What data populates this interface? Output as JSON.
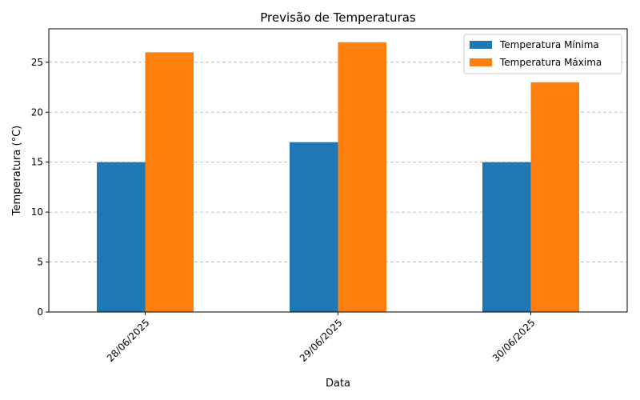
{
  "chart_data": {
    "type": "bar",
    "title": "Previsão de Temperaturas",
    "xlabel": "Data",
    "ylabel": "Temperatura (°C)",
    "categories": [
      "28/06/2025",
      "29/06/2025",
      "30/06/2025"
    ],
    "series": [
      {
        "name": "Temperatura Mínima",
        "values": [
          15,
          17,
          15
        ],
        "color": "#1f77b4"
      },
      {
        "name": "Temperatura Máxima",
        "values": [
          26,
          27,
          23
        ],
        "color": "#ff7f0e"
      }
    ],
    "ylim": [
      0,
      28.35
    ],
    "yticks": [
      0,
      5,
      10,
      15,
      20,
      25
    ],
    "grid": "y-dashed",
    "legend_position": "top-right"
  }
}
